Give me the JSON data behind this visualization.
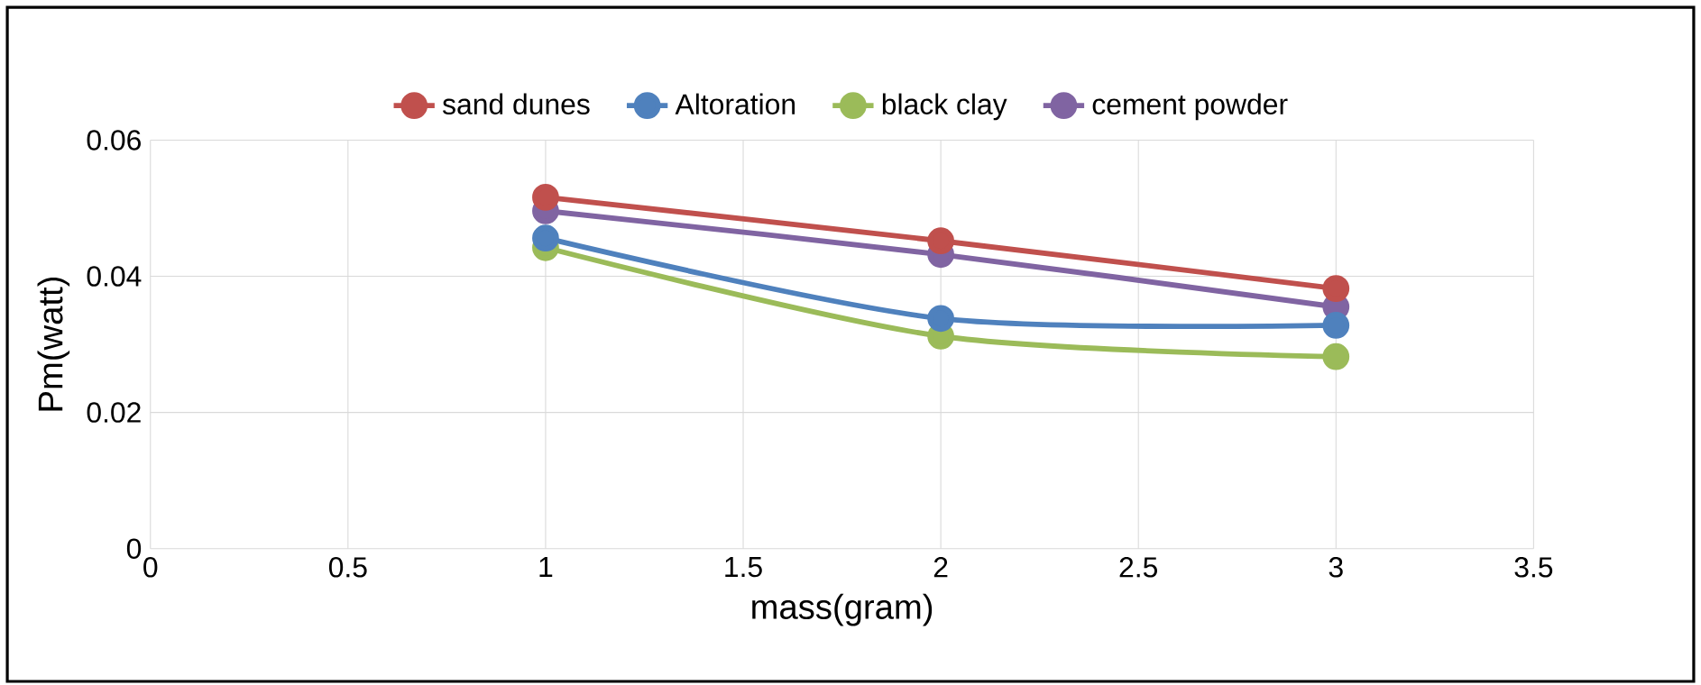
{
  "chart_data": {
    "type": "line",
    "xlabel": "mass(gram)",
    "ylabel": "Pm(watt)",
    "x": [
      1,
      2,
      3
    ],
    "series": [
      {
        "name": "sand dunes",
        "color": "#c0504d",
        "values": [
          0.0516,
          0.0452,
          0.0382
        ]
      },
      {
        "name": "Altoration",
        "color": "#4f81bd",
        "values": [
          0.0456,
          0.0338,
          0.0328
        ]
      },
      {
        "name": "black clay",
        "color": "#9bbb59",
        "values": [
          0.0442,
          0.0312,
          0.0282
        ]
      },
      {
        "name": "cement powder",
        "color": "#8064a2",
        "values": [
          0.0496,
          0.0432,
          0.0355
        ]
      }
    ],
    "xlim": [
      0,
      3.5
    ],
    "xticks": [
      0,
      0.5,
      1,
      1.5,
      2,
      2.5,
      3,
      3.5
    ],
    "ylim": [
      0,
      0.06
    ],
    "yticks": [
      0,
      0.02,
      0.04,
      0.06
    ],
    "grid": true,
    "legend": "top",
    "marker": "circle",
    "line_style": "solid"
  }
}
